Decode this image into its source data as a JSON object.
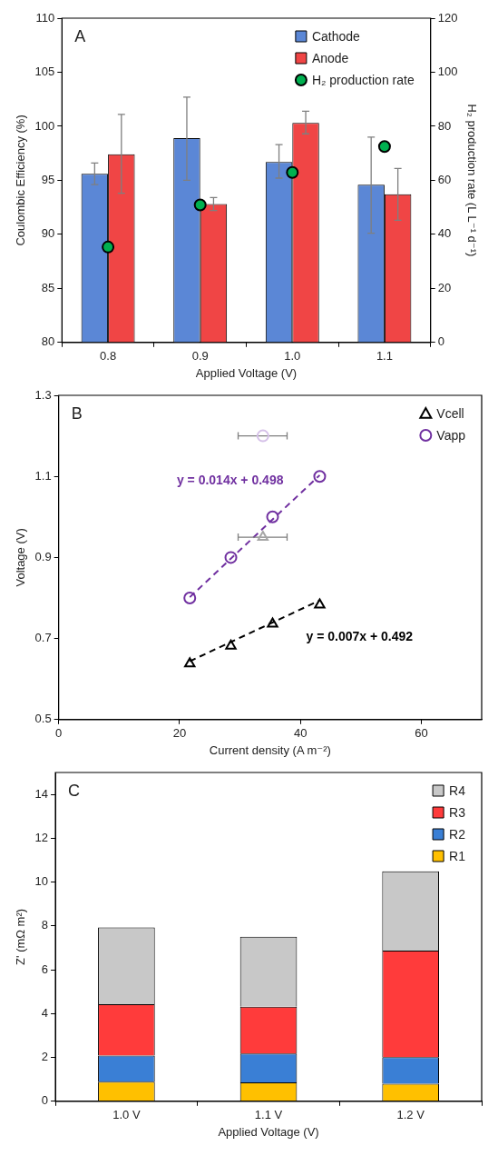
{
  "chart_data": [
    {
      "type": "bar",
      "title": "A",
      "xlabel": "Applied Voltage (V)",
      "ylabel": "Coulombic Efficiency (%)",
      "y2label": "H₂ production rate (L L⁻¹ d⁻¹)",
      "categories": [
        "0.8",
        "0.9",
        "1.0",
        "1.1"
      ],
      "ylim": [
        80,
        110
      ],
      "yticks": [
        80,
        85,
        90,
        95,
        100,
        105,
        110
      ],
      "y2lim": [
        0,
        120
      ],
      "y2ticks": [
        0,
        20,
        40,
        60,
        80,
        100,
        120
      ],
      "legend": "top right",
      "series": [
        {
          "name": "Cathode",
          "color": "#5b87d6",
          "values": [
            95.6,
            98.9,
            96.7,
            94.6
          ],
          "errors": [
            [
              94.6,
              96.6
            ],
            [
              95.0,
              102.7
            ],
            [
              95.2,
              98.3
            ],
            [
              90.1,
              99.0
            ]
          ]
        },
        {
          "name": "Anode",
          "color": "#f04545",
          "values": [
            97.4,
            92.8,
            100.3,
            93.7
          ],
          "errors": [
            [
              93.8,
              101.1
            ],
            [
              92.2,
              93.4
            ],
            [
              99.3,
              101.4
            ],
            [
              91.3,
              96.1
            ]
          ]
        },
        {
          "name": "H₂ production rate",
          "type": "scatter",
          "axis": "y2",
          "marker": "circle",
          "color": "#00b050",
          "x": [
            "0.8",
            "0.9",
            "1.0",
            "1.1"
          ],
          "values": [
            35.3,
            50.9,
            62.9,
            72.5
          ]
        }
      ]
    },
    {
      "type": "scatter",
      "title": "B",
      "xlabel": "Current density (A m⁻²)",
      "ylabel": "Voltage (V)",
      "xlim": [
        0,
        70
      ],
      "xticks": [
        0,
        20,
        40,
        60
      ],
      "ylim": [
        0.5,
        1.3
      ],
      "yticks": [
        0.5,
        0.7,
        0.9,
        1.1,
        1.3
      ],
      "legend": "top right",
      "annotations": [
        "y = 0.014x + 0.498",
        "y = 0.007x + 0.492"
      ],
      "series": [
        {
          "name": "Vcell",
          "marker": "triangle",
          "color": "#000000",
          "x": [
            21.7,
            28.5,
            35.4,
            43.2
          ],
          "values": [
            0.638,
            0.682,
            0.736,
            0.783
          ]
        },
        {
          "name": "Vapp",
          "marker": "circle",
          "color": "#7030a0",
          "x": [
            21.7,
            28.5,
            35.4,
            43.2
          ],
          "values": [
            0.8,
            0.9,
            1.0,
            1.1
          ]
        },
        {
          "marker": "triangle",
          "color": "#a6a6a6",
          "x": [
            33.8
          ],
          "values": [
            0.95
          ],
          "xerrors": [
            [
              29.7,
              37.8
            ]
          ]
        },
        {
          "marker": "circle",
          "color": "#d5c0e8",
          "x": [
            33.8
          ],
          "values": [
            1.2
          ],
          "xerrors": [
            [
              29.7,
              37.8
            ]
          ]
        },
        {
          "type": "line",
          "line_style": "dashed",
          "color": "#7030a0",
          "x": [
            21.7,
            43.2
          ],
          "values": [
            0.802,
            1.103
          ]
        },
        {
          "type": "line",
          "line_style": "dashed",
          "color": "#000000",
          "x": [
            21.7,
            43.2
          ],
          "values": [
            0.644,
            0.794
          ]
        }
      ]
    },
    {
      "type": "bar",
      "stacked": true,
      "title": "C",
      "xlabel": "Applied Voltage (V)",
      "ylabel": "Z' (mΩ m²)",
      "categories": [
        "1.0 V",
        "1.1 V",
        "1.2 V"
      ],
      "ylim": [
        0,
        15
      ],
      "yticks": [
        0,
        2,
        4,
        6,
        8,
        10,
        12,
        14
      ],
      "legend": "top right",
      "series": [
        {
          "name": "R1",
          "color": "#ffc000",
          "values": [
            0.89,
            0.86,
            0.8
          ]
        },
        {
          "name": "R2",
          "color": "#3a7fd5",
          "values": [
            1.2,
            1.32,
            1.21
          ]
        },
        {
          "name": "R3",
          "color": "#ff3b3b",
          "values": [
            2.34,
            2.13,
            4.86
          ]
        },
        {
          "name": "R4",
          "color": "#c8c8c8",
          "values": [
            3.5,
            3.2,
            3.62
          ]
        }
      ]
    }
  ]
}
